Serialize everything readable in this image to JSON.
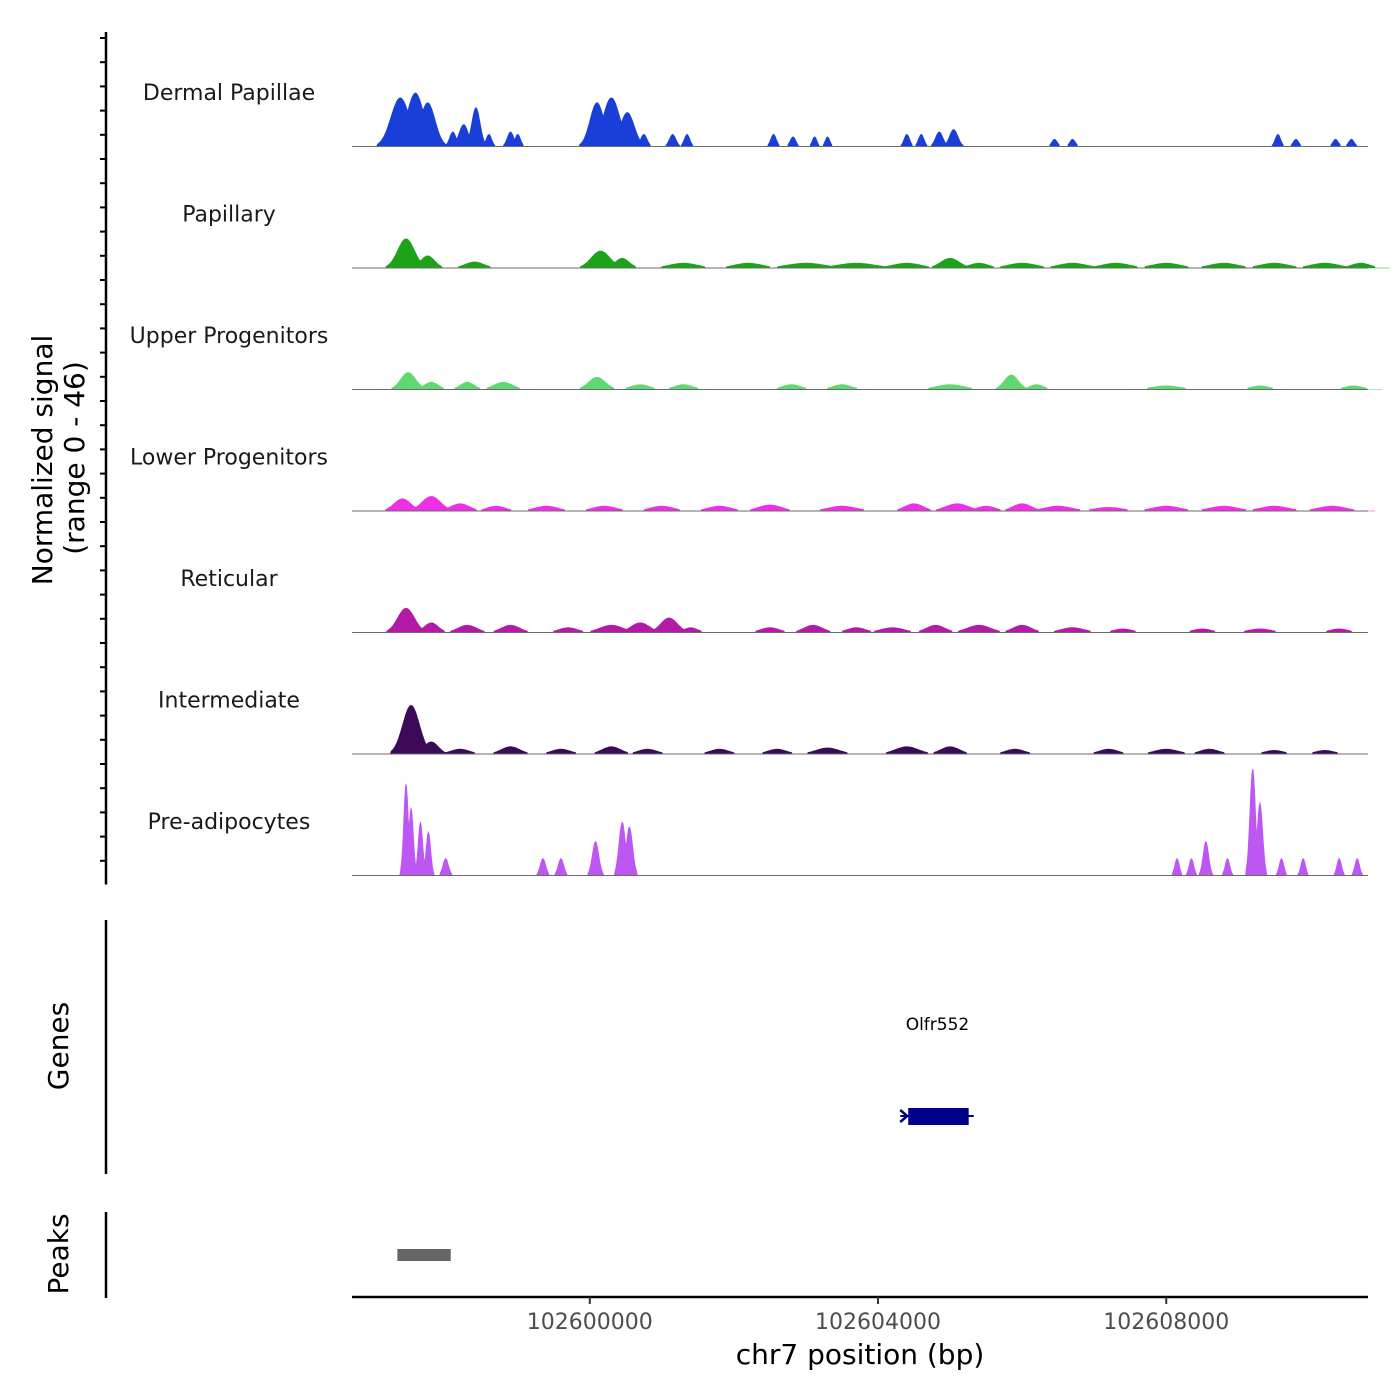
{
  "chart_data": {
    "type": "area",
    "xlabel": "chr7 position (bp)",
    "ylabel": "Normalized signal",
    "ylabel_sub": "(range 0 - 46)",
    "y_range": [
      0,
      46
    ],
    "x_range": [
      102596700,
      102610800
    ],
    "x_ticks": [
      102600000,
      102604000,
      102608000
    ],
    "x_tick_labels": [
      "102600000",
      "102604000",
      "102608000"
    ],
    "tracks": [
      {
        "name": "Dermal Papillae",
        "color": "#1a3fd9",
        "peaks": [
          [
            102597370,
            20,
            200
          ],
          [
            102597580,
            22,
            180
          ],
          [
            102597750,
            18,
            160
          ],
          [
            102597880,
            6,
            80
          ],
          [
            102598100,
            6,
            70
          ],
          [
            102598250,
            9,
            100
          ],
          [
            102598420,
            16,
            90
          ],
          [
            102598600,
            5,
            60
          ],
          [
            102598900,
            6,
            70
          ],
          [
            102599000,
            5,
            60
          ],
          [
            102600100,
            18,
            150
          ],
          [
            102600300,
            20,
            180
          ],
          [
            102600520,
            14,
            150
          ],
          [
            102600750,
            5,
            70
          ],
          [
            102601150,
            5,
            70
          ],
          [
            102601350,
            5,
            60
          ],
          [
            102602550,
            5,
            60
          ],
          [
            102602820,
            4,
            60
          ],
          [
            102603120,
            4,
            50
          ],
          [
            102603300,
            4,
            50
          ],
          [
            102604400,
            5,
            60
          ],
          [
            102604600,
            5,
            60
          ],
          [
            102604850,
            6,
            80
          ],
          [
            102605050,
            7,
            90
          ],
          [
            102606450,
            3,
            60
          ],
          [
            102606700,
            3,
            60
          ],
          [
            102609550,
            5,
            60
          ],
          [
            102609800,
            3,
            60
          ],
          [
            102610350,
            3,
            60
          ],
          [
            102610570,
            3,
            60
          ]
        ]
      },
      {
        "name": "Papillary",
        "color": "#1da31a",
        "peaks": [
          [
            102597450,
            12,
            180
          ],
          [
            102597750,
            5,
            150
          ],
          [
            102598400,
            2.5,
            200
          ],
          [
            102600150,
            7,
            200
          ],
          [
            102600450,
            4,
            150
          ],
          [
            102601300,
            2,
            300
          ],
          [
            102602200,
            2,
            300
          ],
          [
            102603000,
            2,
            400
          ],
          [
            102603700,
            2,
            400
          ],
          [
            102604400,
            2,
            300
          ],
          [
            102605000,
            4,
            200
          ],
          [
            102605400,
            2,
            200
          ],
          [
            102606000,
            2,
            300
          ],
          [
            102606700,
            2,
            300
          ],
          [
            102607300,
            2,
            300
          ],
          [
            102608000,
            2,
            300
          ],
          [
            102608800,
            2,
            300
          ],
          [
            102609500,
            2,
            300
          ],
          [
            102610200,
            2,
            300
          ],
          [
            102610700,
            2,
            200
          ]
        ]
      },
      {
        "name": "Upper Progenitors",
        "color": "#5fd96f",
        "peaks": [
          [
            102597480,
            7,
            160
          ],
          [
            102597800,
            3,
            150
          ],
          [
            102598300,
            3,
            150
          ],
          [
            102598800,
            3,
            200
          ],
          [
            102600100,
            5,
            180
          ],
          [
            102600700,
            2,
            200
          ],
          [
            102601300,
            2,
            200
          ],
          [
            102602800,
            2,
            200
          ],
          [
            102603500,
            2,
            200
          ],
          [
            102605000,
            2,
            300
          ],
          [
            102605850,
            6,
            150
          ],
          [
            102606200,
            2,
            150
          ],
          [
            102608000,
            1.5,
            300
          ],
          [
            102609300,
            1.5,
            200
          ],
          [
            102610600,
            1.5,
            200
          ]
        ]
      },
      {
        "name": "Lower Progenitors",
        "color": "#ef2fe3",
        "peaks": [
          [
            102597400,
            5,
            180
          ],
          [
            102597800,
            6,
            200
          ],
          [
            102598200,
            3,
            200
          ],
          [
            102598700,
            2,
            200
          ],
          [
            102599400,
            2,
            250
          ],
          [
            102600200,
            2,
            250
          ],
          [
            102601000,
            2,
            250
          ],
          [
            102601800,
            2,
            250
          ],
          [
            102602500,
            2.5,
            250
          ],
          [
            102603500,
            2,
            300
          ],
          [
            102604500,
            3,
            200
          ],
          [
            102605100,
            3,
            250
          ],
          [
            102605500,
            2,
            200
          ],
          [
            102606000,
            3,
            200
          ],
          [
            102606500,
            2,
            300
          ],
          [
            102607200,
            1.5,
            300
          ],
          [
            102608000,
            2,
            300
          ],
          [
            102608800,
            2,
            300
          ],
          [
            102609500,
            2,
            300
          ],
          [
            102610300,
            2,
            300
          ]
        ]
      },
      {
        "name": "Reticular",
        "color": "#b31aa8",
        "peaks": [
          [
            102597450,
            10,
            180
          ],
          [
            102597800,
            4,
            150
          ],
          [
            102598300,
            3,
            200
          ],
          [
            102598900,
            3,
            200
          ],
          [
            102599700,
            2,
            200
          ],
          [
            102600300,
            3,
            250
          ],
          [
            102600700,
            4,
            200
          ],
          [
            102601100,
            6,
            180
          ],
          [
            102601400,
            2,
            150
          ],
          [
            102602500,
            2,
            200
          ],
          [
            102603100,
            3,
            200
          ],
          [
            102603700,
            2,
            200
          ],
          [
            102604200,
            2,
            250
          ],
          [
            102604800,
            3,
            200
          ],
          [
            102605400,
            3,
            250
          ],
          [
            102606000,
            3,
            200
          ],
          [
            102606700,
            2,
            250
          ],
          [
            102607400,
            1.5,
            200
          ],
          [
            102608500,
            1.5,
            200
          ],
          [
            102609300,
            1.5,
            250
          ],
          [
            102610400,
            1.5,
            200
          ]
        ]
      },
      {
        "name": "Intermediate",
        "color": "#3b0a57",
        "peaks": [
          [
            102597520,
            20,
            180
          ],
          [
            102597800,
            5,
            150
          ],
          [
            102598200,
            2,
            200
          ],
          [
            102598900,
            3,
            200
          ],
          [
            102599600,
            2,
            200
          ],
          [
            102600300,
            3,
            200
          ],
          [
            102600800,
            2,
            200
          ],
          [
            102601800,
            2,
            200
          ],
          [
            102602600,
            2,
            200
          ],
          [
            102603300,
            2.5,
            250
          ],
          [
            102604400,
            3,
            250
          ],
          [
            102605000,
            3,
            200
          ],
          [
            102605900,
            2,
            200
          ],
          [
            102607200,
            2,
            200
          ],
          [
            102608000,
            2,
            250
          ],
          [
            102608600,
            2,
            200
          ],
          [
            102609500,
            1.5,
            200
          ],
          [
            102610200,
            1.5,
            200
          ]
        ]
      },
      {
        "name": "Pre-adipocytes",
        "color": "#bd57f3",
        "peaks": [
          [
            102597450,
            38,
            50
          ],
          [
            102597520,
            28,
            50
          ],
          [
            102597650,
            22,
            50
          ],
          [
            102597760,
            18,
            50
          ],
          [
            102598000,
            7,
            60
          ],
          [
            102599350,
            7,
            60
          ],
          [
            102599600,
            7,
            60
          ],
          [
            102600080,
            14,
            70
          ],
          [
            102600450,
            22,
            70
          ],
          [
            102600550,
            20,
            70
          ],
          [
            102608150,
            7,
            50
          ],
          [
            102608350,
            7,
            50
          ],
          [
            102608550,
            14,
            60
          ],
          [
            102608850,
            7,
            50
          ],
          [
            102609200,
            44,
            60
          ],
          [
            102609300,
            30,
            60
          ],
          [
            102609600,
            7,
            50
          ],
          [
            102609900,
            7,
            50
          ],
          [
            102610400,
            7,
            50
          ],
          [
            102610650,
            7,
            50
          ]
        ]
      }
    ],
    "genes": [
      {
        "name": "Olfr552",
        "start": 102604350,
        "end": 102605300,
        "color": "#00008b"
      }
    ],
    "genes_axis_label": "Genes",
    "peaks_axis_label": "Peaks",
    "peak_regions": [
      {
        "start": 102597330,
        "end": 102598070,
        "color": "#666666"
      }
    ]
  }
}
